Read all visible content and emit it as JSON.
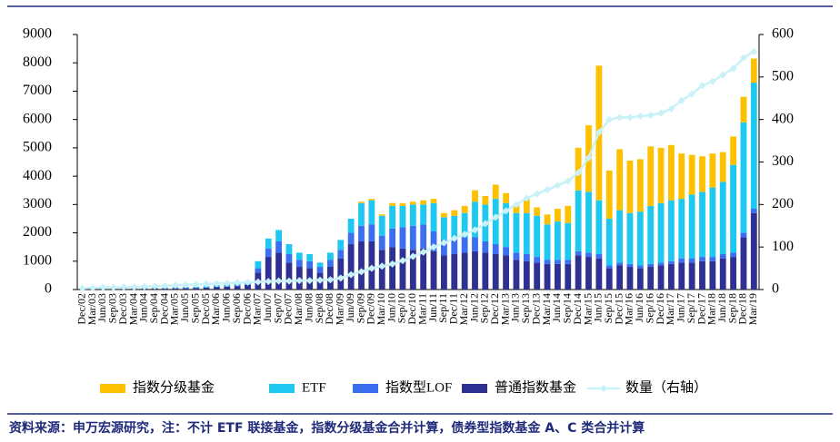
{
  "chart_data": {
    "type": "bar",
    "stacked": true,
    "categories": [
      "Dec/02",
      "Mar/03",
      "Jun/03",
      "Sep/03",
      "Dec/03",
      "Mar/04",
      "Jun/04",
      "Sep/04",
      "Dec/04",
      "Mar/05",
      "Jun/05",
      "Sep/05",
      "Dec/05",
      "Mar/06",
      "Jun/06",
      "Sep/06",
      "Dec/06",
      "Mar/07",
      "Jun/07",
      "Sep/07",
      "Dec/07",
      "Mar/08",
      "Jun/08",
      "Sep/08",
      "Dec/08",
      "Mar/09",
      "Jun/09",
      "Sep/09",
      "Dec/09",
      "Mar/10",
      "Jun/10",
      "Sep/10",
      "Dec/10",
      "Mar/11",
      "Jun/11",
      "Sep/11",
      "Dec/11",
      "Mar/12",
      "Jun/12",
      "Sep/12",
      "Dec/12",
      "Mar/13",
      "Jun/13",
      "Sep/13",
      "Dec/13",
      "Mar/14",
      "Jun/14",
      "Sep/14",
      "Dec/14",
      "Mar/15",
      "Jun/15",
      "Sep/15",
      "Dec/15",
      "Mar/16",
      "Jun/16",
      "Sep/16",
      "Dec/16",
      "Mar/17",
      "Jun/17",
      "Sep/17",
      "Dec/17",
      "Mar/18",
      "Jun/18",
      "Sep/18",
      "Dec/18",
      "Mar/19"
    ],
    "series": [
      {
        "name": "指数分级基金",
        "color": "#ffc000",
        "values": [
          0,
          0,
          0,
          0,
          0,
          0,
          0,
          0,
          0,
          0,
          0,
          0,
          0,
          0,
          0,
          0,
          0,
          0,
          0,
          0,
          0,
          0,
          0,
          0,
          0,
          0,
          0,
          50,
          50,
          50,
          100,
          100,
          100,
          150,
          150,
          150,
          200,
          250,
          400,
          300,
          500,
          350,
          300,
          500,
          300,
          350,
          450,
          600,
          1500,
          2350,
          4750,
          1700,
          2150,
          1850,
          1850,
          2100,
          1950,
          1950,
          1600,
          1400,
          1250,
          1200,
          1050,
          1000,
          900,
          850
        ]
      },
      {
        "name": "ETF",
        "color": "#1ec8f0",
        "values": [
          5,
          7,
          10,
          13,
          15,
          17,
          20,
          25,
          30,
          30,
          35,
          35,
          45,
          55,
          60,
          75,
          90,
          250,
          350,
          400,
          350,
          250,
          250,
          150,
          250,
          350,
          500,
          800,
          850,
          700,
          800,
          750,
          750,
          700,
          1000,
          800,
          800,
          850,
          1250,
          1300,
          1600,
          1550,
          1400,
          1450,
          1450,
          1250,
          1350,
          1300,
          2150,
          2150,
          1900,
          1650,
          1850,
          1800,
          1900,
          2050,
          2100,
          2150,
          2100,
          2250,
          2300,
          2450,
          2550,
          3100,
          3900,
          4450
        ]
      },
      {
        "name": "指数型LOF",
        "color": "#3b6ff0",
        "values": [
          0,
          0,
          0,
          0,
          0,
          0,
          0,
          0,
          0,
          5,
          5,
          10,
          10,
          15,
          20,
          25,
          30,
          150,
          300,
          400,
          300,
          250,
          250,
          200,
          250,
          300,
          400,
          550,
          600,
          500,
          650,
          750,
          850,
          850,
          700,
          550,
          550,
          550,
          500,
          400,
          350,
          300,
          250,
          250,
          200,
          150,
          150,
          150,
          150,
          150,
          150,
          100,
          100,
          100,
          100,
          100,
          100,
          100,
          150,
          150,
          150,
          150,
          150,
          150,
          150,
          150
        ]
      },
      {
        "name": "普通指数基金",
        "color": "#2e3192",
        "values": [
          15,
          18,
          20,
          22,
          25,
          28,
          30,
          35,
          40,
          45,
          50,
          55,
          65,
          80,
          100,
          120,
          160,
          600,
          1150,
          1300,
          950,
          800,
          750,
          600,
          800,
          1100,
          1600,
          1700,
          1700,
          1400,
          1500,
          1450,
          1400,
          1450,
          1350,
          1200,
          1250,
          1300,
          1350,
          1300,
          1250,
          1200,
          1050,
          1000,
          950,
          900,
          900,
          900,
          1200,
          1150,
          1100,
          750,
          850,
          800,
          750,
          800,
          850,
          900,
          950,
          950,
          1000,
          1000,
          1100,
          1150,
          1850,
          2700
        ]
      },
      {
        "name": "数量（右轴）",
        "type": "line",
        "axis": "y2",
        "color": "#c8f2f8",
        "values": [
          3,
          4,
          5,
          5,
          6,
          6,
          7,
          8,
          9,
          10,
          11,
          12,
          13,
          14,
          15,
          16,
          17,
          18,
          19,
          20,
          20,
          21,
          21,
          22,
          23,
          27,
          35,
          42,
          50,
          55,
          60,
          68,
          78,
          88,
          100,
          110,
          120,
          130,
          140,
          155,
          170,
          185,
          200,
          215,
          225,
          235,
          245,
          255,
          275,
          310,
          370,
          400,
          405,
          405,
          408,
          410,
          415,
          425,
          445,
          460,
          480,
          490,
          505,
          520,
          545,
          560
        ]
      }
    ],
    "ylim": [
      0,
      9000
    ],
    "yticks": [
      0,
      1000,
      2000,
      3000,
      4000,
      5000,
      6000,
      7000,
      8000,
      9000
    ],
    "y2lim": [
      0,
      600
    ],
    "y2ticks": [
      0,
      100,
      200,
      300,
      400,
      500,
      600
    ],
    "legend": "bottom",
    "source": "资料来源：申万宏源研究，注：不计 ETF 联接基金，指数分级基金合并计算，债券型指数基金 A、C 类合并计算"
  }
}
